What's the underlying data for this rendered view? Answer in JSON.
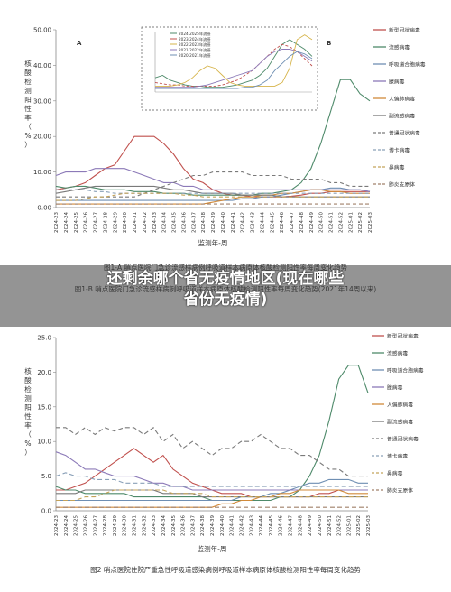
{
  "banner": {
    "line1": "还剩余哪个省无疫情地区(现在哪些",
    "line2": "省份无疫情)"
  },
  "chart_data": [
    {
      "type": "line",
      "panel_label_main": "A",
      "panel_label_right": "B",
      "title": "图1-A 哨点医院门急诊流感样病例呼吸道样本病原体核酸检测阳性率每周变化趋势",
      "subtitle": "图1-B 哨点医院门急诊流感样病例呼吸道样本病原体核酸检测阳性率每周变化趋势(2021年14周以来)",
      "xlabel": "监测年-周",
      "ylabel": "核酸检测阳性率（%）",
      "ylim": [
        0,
        50
      ],
      "yticks": [
        "0.00",
        "10.00",
        "20.00",
        "30.00",
        "40.00",
        "50.00"
      ],
      "categories": [
        "2024-23",
        "2024-24",
        "2024-25",
        "2024-26",
        "2024-27",
        "2024-28",
        "2024-29",
        "2024-30",
        "2024-31",
        "2024-32",
        "2024-33",
        "2024-34",
        "2024-35",
        "2024-36",
        "2024-37",
        "2024-38",
        "2024-39",
        "2024-40",
        "2024-41",
        "2024-42",
        "2024-43",
        "2024-44",
        "2024-45",
        "2024-46",
        "2024-47",
        "2024-48",
        "2024-49",
        "2024-50",
        "2024-51",
        "2024-52",
        "2025-01",
        "2025-02",
        "2025-03"
      ],
      "legend": [
        "新型冠状病毒",
        "流感病毒",
        "呼吸道合胞病毒",
        "腺病毒",
        "人偏肺病毒",
        "副流感病毒",
        "普通冠状病毒",
        "博卡病毒",
        "鼻病毒",
        "肺炎支原体"
      ],
      "series": [
        {
          "color": "#c0504d",
          "dash": "",
          "values": [
            5,
            5.5,
            6,
            7,
            9,
            11,
            12,
            16,
            20,
            20,
            20,
            18,
            15,
            11,
            8,
            7,
            5,
            4,
            3.5,
            3.5,
            3,
            3,
            3,
            3,
            3.2,
            3.5,
            4,
            4,
            4.5,
            4.5,
            4.5,
            4.5,
            4.5
          ]
        },
        {
          "color": "#4e8a6a",
          "dash": "",
          "values": [
            6,
            5.5,
            6,
            6,
            5.5,
            5,
            5,
            5,
            4.5,
            4.5,
            4.5,
            4,
            4,
            4,
            3.5,
            3.5,
            3.5,
            3.5,
            3.5,
            3.5,
            3.5,
            4,
            4,
            4.5,
            5,
            7,
            11,
            18,
            27,
            36,
            36,
            32,
            30
          ]
        },
        {
          "color": "#6f8fb3",
          "dash": "",
          "values": [
            2,
            2,
            2,
            2,
            2,
            2,
            2,
            2,
            2,
            2,
            2,
            2,
            2,
            2,
            2,
            2,
            2,
            2,
            2,
            2.5,
            2.5,
            3,
            3,
            3.5,
            4,
            4.5,
            5,
            5,
            5.5,
            5.5,
            5,
            5,
            4.5
          ]
        },
        {
          "color": "#8c7ab8",
          "dash": "",
          "values": [
            9,
            10,
            10,
            10,
            11,
            11,
            11,
            11,
            10,
            9,
            8,
            7,
            7,
            6,
            6,
            5,
            5,
            5,
            5,
            5,
            5,
            5,
            5,
            5,
            5,
            5,
            5,
            5,
            5,
            5,
            5,
            5,
            4.5
          ]
        },
        {
          "color": "#d18a3a",
          "dash": "",
          "values": [
            1,
            1,
            1,
            1,
            1,
            1,
            1,
            1,
            1,
            1,
            1,
            1,
            1,
            1,
            1,
            1,
            1.5,
            2,
            2.5,
            3,
            3,
            3.5,
            3.5,
            4,
            4,
            4.5,
            5,
            5,
            4.5,
            4.5,
            4,
            4,
            4
          ]
        },
        {
          "color": "#7a7a7a",
          "dash": "",
          "values": [
            4,
            4.5,
            5,
            5.5,
            6,
            6,
            6,
            6,
            6,
            6,
            6,
            5.5,
            5,
            5,
            4.5,
            4,
            4,
            4,
            4,
            3.5,
            3.5,
            3.5,
            3.5,
            3,
            3,
            3,
            3,
            3,
            3,
            3,
            3,
            3,
            3
          ]
        },
        {
          "color": "#7a7a7a",
          "dash": "4,3",
          "values": [
            3,
            3,
            3,
            3,
            3,
            3,
            3,
            3,
            3,
            4,
            5,
            6,
            7,
            8,
            9,
            9,
            10,
            10,
            10,
            10,
            9,
            9,
            9,
            9,
            8,
            8,
            8,
            8,
            7,
            7,
            6,
            6,
            6
          ]
        },
        {
          "color": "#8aa0b8",
          "dash": "4,3",
          "values": [
            5,
            5,
            5,
            5,
            4.5,
            4.5,
            4,
            4,
            4,
            4,
            4,
            4,
            4,
            4,
            4,
            4,
            4,
            4,
            4,
            4,
            4,
            4,
            4,
            4,
            4,
            4,
            4,
            4,
            4,
            4,
            4,
            4,
            4
          ]
        },
        {
          "color": "#c4a35a",
          "dash": "4,3",
          "values": [
            2,
            2,
            2,
            2.5,
            3,
            3,
            3.5,
            4,
            4,
            4,
            4,
            4,
            4,
            3.5,
            3.5,
            3,
            3,
            3,
            3,
            3,
            3,
            3,
            3,
            3,
            3,
            3,
            3,
            3,
            3,
            3,
            3,
            3,
            3
          ]
        },
        {
          "color": "#a0806a",
          "dash": "4,3",
          "values": [
            1,
            1,
            1,
            1,
            1,
            1,
            1,
            1,
            1,
            1,
            1,
            1,
            1,
            1,
            1,
            1,
            1,
            1,
            1,
            1,
            1,
            1,
            1,
            1,
            1,
            1,
            1,
            1,
            1,
            1,
            1,
            1,
            1
          ]
        }
      ],
      "inset": {
        "legend": [
          "2024-2025年流感",
          "2023-2024年流感",
          "2022-2023年流感",
          "2021-2022年流感",
          "2020-2021年流感"
        ],
        "ylim": [
          0,
          50
        ],
        "series": [
          {
            "color": "#4e8a6a",
            "dash": "",
            "values": [
              12,
              14,
              10,
              8,
              6,
              5,
              5,
              4,
              4,
              4,
              5,
              6,
              8,
              10,
              14,
              20,
              30,
              40,
              44,
              40,
              36,
              30
            ]
          },
          {
            "color": "#c0504d",
            "dash": "3,2",
            "values": [
              8,
              7,
              6,
              6,
              5,
              5,
              5,
              5,
              5,
              6,
              8,
              10,
              14,
              18,
              24,
              30,
              36,
              40,
              38,
              34,
              28,
              22
            ]
          },
          {
            "color": "#d6b44a",
            "dash": "",
            "values": [
              5,
              5,
              5,
              6,
              8,
              12,
              18,
              22,
              20,
              14,
              8,
              6,
              5,
              5,
              5,
              5,
              5,
              8,
              20,
              44,
              48,
              44
            ]
          },
          {
            "color": "#8c7ab8",
            "dash": "",
            "values": [
              4,
              4,
              4,
              4,
              4,
              4,
              5,
              6,
              8,
              10,
              12,
              14,
              16,
              18,
              24,
              30,
              34,
              36,
              36,
              34,
              30,
              26
            ]
          },
          {
            "color": "#6f8fb3",
            "dash": "",
            "values": [
              3,
              3,
              3,
              3,
              3,
              3,
              3,
              3,
              3,
              3,
              3,
              3,
              4,
              4,
              6,
              10,
              18,
              24,
              30,
              34,
              32,
              28
            ]
          }
        ]
      }
    },
    {
      "type": "line",
      "title": "图2 哨点医院住院严重急性呼吸道感染病例呼吸道样本病原体核酸检测阳性率每周变化趋势",
      "xlabel": "监测年-周",
      "ylabel": "核酸检测阳性率（%）",
      "ylim": [
        0,
        25
      ],
      "yticks": [
        "0.0",
        "5.0",
        "10.0",
        "15.0",
        "20.0",
        "25.0"
      ],
      "categories": [
        "2024-23",
        "2024-24",
        "2024-25",
        "2024-26",
        "2024-27",
        "2024-28",
        "2024-29",
        "2024-30",
        "2024-31",
        "2024-32",
        "2024-33",
        "2024-34",
        "2024-35",
        "2024-36",
        "2024-37",
        "2024-38",
        "2024-39",
        "2024-40",
        "2024-41",
        "2024-42",
        "2024-43",
        "2024-44",
        "2024-45",
        "2024-46",
        "2024-47",
        "2024-48",
        "2024-49",
        "2024-50",
        "2024-51",
        "2024-52",
        "2025-01",
        "2025-02",
        "2025-03"
      ],
      "legend": [
        "新型冠状病毒",
        "流感病毒",
        "呼吸道合胞病毒",
        "腺病毒",
        "人偏肺病毒",
        "副流感病毒",
        "普通冠状病毒",
        "博卡病毒",
        "鼻病毒",
        "肺炎支原体"
      ],
      "series": [
        {
          "color": "#c0504d",
          "dash": "",
          "values": [
            3,
            3,
            3.5,
            4,
            5,
            6,
            7,
            8,
            9,
            8,
            7,
            8,
            6,
            5,
            4,
            3.5,
            3,
            2.5,
            2.5,
            2.5,
            2,
            2,
            2,
            2,
            2,
            2,
            2,
            2.5,
            2.5,
            3,
            3,
            3,
            3
          ]
        },
        {
          "color": "#4e8a6a",
          "dash": "",
          "values": [
            3.5,
            3,
            3,
            2.5,
            2.5,
            2.5,
            2.5,
            2.5,
            2,
            2,
            2,
            2,
            2,
            2,
            2,
            2,
            1.5,
            1.5,
            1.5,
            1.5,
            1.5,
            1.5,
            1.5,
            2,
            2,
            3,
            5,
            8,
            13,
            19,
            21,
            21,
            17
          ]
        },
        {
          "color": "#6f8fb3",
          "dash": "",
          "values": [
            1.5,
            1.5,
            1.5,
            1.5,
            1.5,
            1.5,
            1.5,
            1.5,
            1.5,
            1.5,
            1.5,
            1.5,
            1.5,
            1.5,
            1.5,
            1.5,
            1.5,
            1.5,
            1.5,
            2,
            2,
            2,
            2.5,
            2.5,
            3,
            3.5,
            4,
            4,
            4.5,
            4.5,
            4.5,
            4,
            4
          ]
        },
        {
          "color": "#8c7ab8",
          "dash": "",
          "values": [
            8.5,
            8,
            7,
            6,
            6,
            5.5,
            5,
            5,
            5,
            4.5,
            4,
            4,
            3.5,
            3.5,
            3,
            3,
            3,
            3,
            3,
            3,
            3,
            3,
            3,
            3,
            3,
            3,
            3,
            3,
            3,
            3,
            3,
            3,
            3
          ]
        },
        {
          "color": "#d18a3a",
          "dash": "",
          "values": [
            0.5,
            0.5,
            0.5,
            0.5,
            0.5,
            0.5,
            0.5,
            0.5,
            0.5,
            0.5,
            0.5,
            0.5,
            0.5,
            0.5,
            0.5,
            0.5,
            0.5,
            1,
            1,
            1.5,
            1.5,
            2,
            2,
            2.5,
            2.5,
            3,
            3,
            3,
            3,
            3,
            2.5,
            2.5,
            2.5
          ]
        },
        {
          "color": "#7a7a7a",
          "dash": "",
          "values": [
            2.5,
            2.5,
            2.5,
            3,
            3,
            3,
            3,
            3,
            3,
            3,
            3,
            2.5,
            2.5,
            2.5,
            2.5,
            2,
            2,
            2,
            2,
            2,
            2,
            2,
            2,
            2,
            2,
            2,
            2,
            2,
            2,
            2,
            2,
            2,
            2
          ]
        },
        {
          "color": "#7a7a7a",
          "dash": "5,3",
          "values": [
            12,
            12,
            11,
            12,
            11,
            12,
            11.5,
            12,
            12,
            11,
            12,
            10,
            11,
            9,
            10,
            9,
            8,
            9,
            9,
            10,
            10,
            11,
            10,
            9,
            9,
            8,
            8,
            7,
            6,
            6,
            5,
            5,
            5
          ]
        },
        {
          "color": "#8aa0b8",
          "dash": "5,3",
          "values": [
            5,
            5.5,
            5,
            5,
            4.5,
            4.5,
            4.5,
            4,
            4,
            4,
            4,
            3.5,
            3.5,
            3.5,
            3.5,
            3.5,
            3.5,
            3.5,
            3.5,
            3.5,
            3.5,
            3.5,
            3.5,
            3.5,
            3.5,
            3.5,
            3.5,
            3.5,
            3.5,
            3.5,
            3.5,
            3.5,
            3.5
          ]
        },
        {
          "color": "#c4a35a",
          "dash": "5,3",
          "values": [
            1.5,
            1.5,
            1.5,
            2,
            2,
            2.5,
            3,
            3,
            3,
            3,
            3,
            3,
            2.5,
            2.5,
            2.5,
            2.5,
            2,
            2,
            2,
            2,
            2,
            2,
            2,
            2,
            2,
            2,
            2,
            2,
            2,
            2,
            2,
            2,
            2
          ]
        },
        {
          "color": "#a0806a",
          "dash": "5,3",
          "values": [
            0.5,
            0.5,
            0.5,
            0.5,
            0.5,
            0.5,
            0.5,
            0.5,
            0.5,
            0.5,
            0.5,
            0.5,
            0.5,
            0.5,
            0.5,
            0.5,
            0.5,
            0.5,
            0.5,
            0.5,
            0.5,
            0.5,
            0.5,
            0.5,
            0.5,
            0.5,
            0.5,
            0.5,
            0.5,
            0.5,
            0.5,
            0.5,
            0.5
          ]
        }
      ]
    }
  ]
}
